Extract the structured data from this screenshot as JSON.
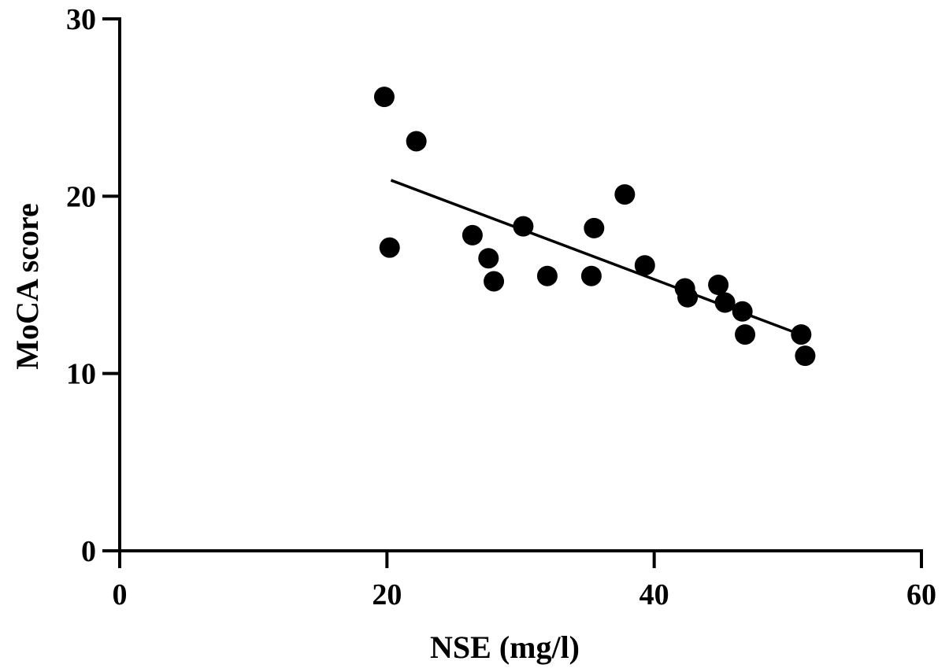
{
  "chart_data": {
    "type": "scatter",
    "title": "",
    "xlabel": "NSE (mg/l)",
    "ylabel": "MoCA score",
    "xlim": [
      0,
      60
    ],
    "ylim": [
      0,
      30
    ],
    "x_ticks": [
      0,
      20,
      40,
      60
    ],
    "y_ticks": [
      0,
      10,
      20,
      30
    ],
    "x_tick_labels": [
      "0",
      "20",
      "40",
      "60"
    ],
    "y_tick_labels": [
      "0",
      "10",
      "20",
      "30"
    ],
    "grid": false,
    "points": [
      {
        "x": 19.8,
        "y": 25.6
      },
      {
        "x": 20.2,
        "y": 17.1
      },
      {
        "x": 22.2,
        "y": 23.1
      },
      {
        "x": 26.4,
        "y": 17.8
      },
      {
        "x": 27.6,
        "y": 16.5
      },
      {
        "x": 28.0,
        "y": 15.2
      },
      {
        "x": 30.2,
        "y": 18.3
      },
      {
        "x": 32.0,
        "y": 15.5
      },
      {
        "x": 35.3,
        "y": 15.5
      },
      {
        "x": 35.5,
        "y": 18.2
      },
      {
        "x": 37.8,
        "y": 20.1
      },
      {
        "x": 39.3,
        "y": 16.1
      },
      {
        "x": 42.3,
        "y": 14.8
      },
      {
        "x": 42.5,
        "y": 14.3
      },
      {
        "x": 44.8,
        "y": 15.0
      },
      {
        "x": 45.3,
        "y": 14.0
      },
      {
        "x": 46.6,
        "y": 13.5
      },
      {
        "x": 46.8,
        "y": 12.2
      },
      {
        "x": 51.0,
        "y": 12.2
      },
      {
        "x": 51.3,
        "y": 11.0
      }
    ],
    "trend_line": {
      "x": [
        20.3,
        51.3
      ],
      "y": [
        20.9,
        12.1
      ]
    }
  }
}
